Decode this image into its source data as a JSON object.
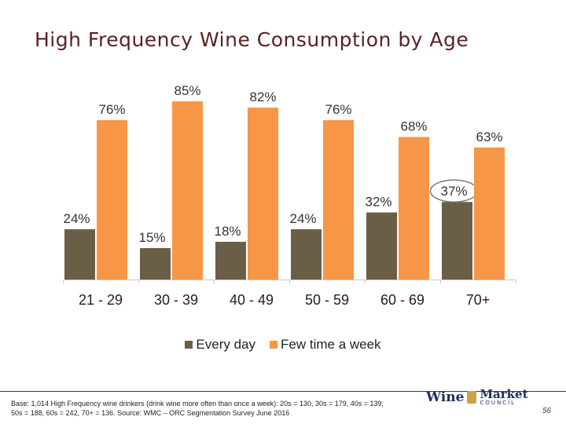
{
  "title": "High Frequency Wine Consumption by Age",
  "chart_data": {
    "type": "bar",
    "title": "High Frequency Wine Consumption by Age",
    "categories": [
      "21 - 29",
      "30 - 39",
      "40 - 49",
      "50 - 59",
      "60 - 69",
      "70+"
    ],
    "series": [
      {
        "name": "Every day",
        "values": [
          24,
          15,
          18,
          24,
          32,
          37
        ],
        "labels": [
          "24%",
          "15%",
          "18%",
          "24%",
          "32%",
          "37%"
        ],
        "color": "#6b5e47"
      },
      {
        "name": "Few time a week",
        "values": [
          76,
          85,
          82,
          76,
          68,
          63
        ],
        "labels": [
          "76%",
          "85%",
          "82%",
          "76%",
          "68%",
          "63%"
        ],
        "color": "#f79646"
      }
    ],
    "ylim": [
      0,
      100
    ],
    "xlabel": "",
    "ylabel": "",
    "legend_position": "bottom",
    "grid": false,
    "highlight": "37%"
  },
  "legend": {
    "every_day": "Every day",
    "few_time": "Few time a week"
  },
  "footnote": "Base: 1,014 High Frequency wine drinkers (drink wine more often than once a week): 20s = 130, 30s = 179, 40s = 139, 50s = 188, 60s = 242, 70+ = 136. Source: WMC – ORC Segmentation Survey June 2016",
  "logo": {
    "wine": "Wine",
    "market": "Market",
    "council": "COUNCIL"
  },
  "page_number": "56"
}
